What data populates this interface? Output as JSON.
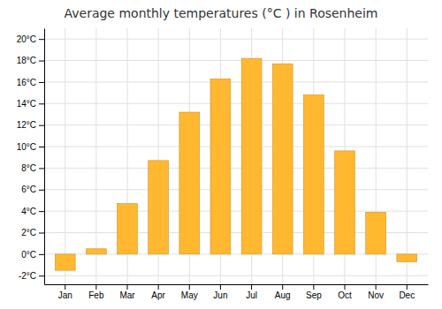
{
  "chart_data": {
    "type": "bar",
    "title": "Average monthly temperatures (°C ) in Rosenheim",
    "categories": [
      "Jan",
      "Feb",
      "Mar",
      "Apr",
      "May",
      "Jun",
      "Jul",
      "Aug",
      "Sep",
      "Oct",
      "Nov",
      "Dec"
    ],
    "values": [
      -1.5,
      0.5,
      4.7,
      8.7,
      13.2,
      16.3,
      18.2,
      17.7,
      14.8,
      9.6,
      3.9,
      -0.7
    ],
    "color": "#FFB830",
    "ylim": [
      -2.8,
      21.0
    ],
    "yticks": [
      {
        "value": -2,
        "label": "-2°C"
      },
      {
        "value": 0,
        "label": "0°C"
      },
      {
        "value": 2,
        "label": "2°C"
      },
      {
        "value": 4,
        "label": "4°C"
      },
      {
        "value": 6,
        "label": "6°C"
      },
      {
        "value": 8,
        "label": "8°C"
      },
      {
        "value": 10,
        "label": "10°C"
      },
      {
        "value": 12,
        "label": "12°C"
      },
      {
        "value": 14,
        "label": "14°C"
      },
      {
        "value": 16,
        "label": "16°C"
      },
      {
        "value": 18,
        "label": "18°C"
      },
      {
        "value": 20,
        "label": "20°C"
      }
    ],
    "grid": true
  }
}
